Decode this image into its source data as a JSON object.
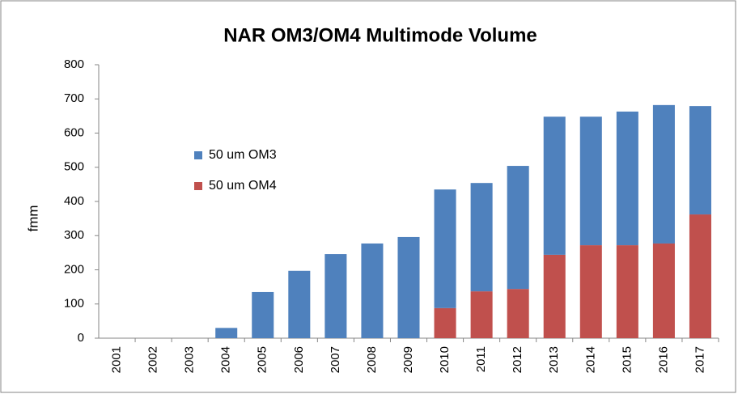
{
  "chart_data": {
    "type": "stacked_bar",
    "title": "NAR OM3/OM4 Multimode Volume",
    "ylabel": "fmm",
    "categories": [
      "2001",
      "2002",
      "2003",
      "2004",
      "2005",
      "2006",
      "2007",
      "2008",
      "2009",
      "2010",
      "2011",
      "2012",
      "2013",
      "2014",
      "2015",
      "2016",
      "2017"
    ],
    "series": [
      {
        "name": "50 um OM3",
        "color": "#4f81bd",
        "values": [
          0,
          0,
          0,
          30,
          135,
          197,
          246,
          277,
          296,
          347,
          317,
          360,
          404,
          376,
          391,
          405,
          317
        ]
      },
      {
        "name": "50 um OM4",
        "color": "#c0504d",
        "values": [
          0,
          0,
          0,
          0,
          0,
          0,
          0,
          0,
          0,
          88,
          137,
          144,
          244,
          272,
          272,
          277,
          362
        ]
      }
    ],
    "ylim": [
      0,
      800
    ],
    "yticks": [
      0,
      100,
      200,
      300,
      400,
      500,
      600,
      700,
      800
    ],
    "grid": false
  }
}
